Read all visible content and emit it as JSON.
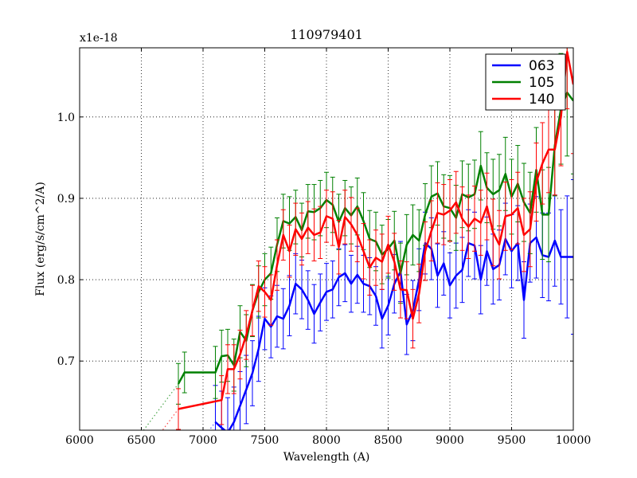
{
  "chart_data": {
    "type": "line",
    "title": "110979401",
    "xlabel": "Wavelength (A)",
    "ylabel": "Flux (erg/s/cm^2/A)",
    "y_multiplier": "x1e-18",
    "xlim": [
      6000,
      10000
    ],
    "ylim": [
      0.615,
      1.085
    ],
    "grid": true,
    "legend_position": "top-right",
    "x_ticks": [
      6000,
      6500,
      7000,
      7500,
      8000,
      8500,
      9000,
      9500,
      10000
    ],
    "x_tick_labels": [
      "6000",
      "6500",
      "7000",
      "7500",
      "8000",
      "8500",
      "9000",
      "9500",
      "10000"
    ],
    "y_ticks": [
      0.7,
      0.8,
      0.9,
      1.0
    ],
    "y_tick_labels": [
      "0.7",
      "0.8",
      "0.9",
      "1.0"
    ],
    "series": [
      {
        "name": "063",
        "color": "#0000ff",
        "x": [
          7100,
          7150,
          7200,
          7250,
          7300,
          7350,
          7400,
          7450,
          7500,
          7550,
          7600,
          7650,
          7700,
          7750,
          7800,
          7850,
          7900,
          7950,
          8000,
          8050,
          8100,
          8150,
          8200,
          8250,
          8300,
          8350,
          8400,
          8450,
          8500,
          8550,
          8600,
          8650,
          8700,
          8750,
          8800,
          8850,
          8900,
          8950,
          9000,
          9050,
          9100,
          9150,
          9200,
          9250,
          9300,
          9350,
          9400,
          9450,
          9500,
          9550,
          9600,
          9650,
          9700,
          9750,
          9800,
          9850,
          9900,
          9950,
          10000
        ],
        "y": [
          0.625,
          0.618,
          0.612,
          0.625,
          0.645,
          0.665,
          0.685,
          0.715,
          0.752,
          0.742,
          0.755,
          0.752,
          0.768,
          0.795,
          0.788,
          0.775,
          0.758,
          0.772,
          0.785,
          0.788,
          0.803,
          0.808,
          0.795,
          0.806,
          0.795,
          0.792,
          0.78,
          0.752,
          0.768,
          0.795,
          0.81,
          0.745,
          0.762,
          0.8,
          0.845,
          0.838,
          0.805,
          0.82,
          0.793,
          0.805,
          0.812,
          0.845,
          0.842,
          0.8,
          0.835,
          0.813,
          0.818,
          0.85,
          0.835,
          0.845,
          0.775,
          0.845,
          0.852,
          0.83,
          0.828,
          0.848,
          0.828,
          0.828,
          0.828
        ],
        "err": [
          0.045,
          0.045,
          0.043,
          0.043,
          0.042,
          0.042,
          0.04,
          0.04,
          0.038,
          0.038,
          0.038,
          0.037,
          0.037,
          0.037,
          0.036,
          0.036,
          0.036,
          0.035,
          0.035,
          0.035,
          0.035,
          0.035,
          0.035,
          0.035,
          0.035,
          0.035,
          0.036,
          0.036,
          0.036,
          0.036,
          0.037,
          0.037,
          0.037,
          0.038,
          0.038,
          0.038,
          0.039,
          0.039,
          0.04,
          0.04,
          0.04,
          0.041,
          0.041,
          0.042,
          0.042,
          0.043,
          0.043,
          0.044,
          0.045,
          0.046,
          0.047,
          0.048,
          0.05,
          0.052,
          0.054,
          0.056,
          0.058,
          0.075,
          0.095
        ]
      },
      {
        "name": "105",
        "color": "#008000",
        "x": [
          6800,
          6850,
          7100,
          7150,
          7200,
          7250,
          7300,
          7350,
          7400,
          7450,
          7500,
          7550,
          7600,
          7650,
          7700,
          7750,
          7800,
          7850,
          7900,
          7950,
          8000,
          8050,
          8100,
          8150,
          8200,
          8250,
          8300,
          8350,
          8400,
          8450,
          8500,
          8550,
          8600,
          8650,
          8700,
          8750,
          8800,
          8850,
          8900,
          8950,
          9000,
          9050,
          9100,
          9150,
          9200,
          9250,
          9300,
          9350,
          9400,
          9450,
          9500,
          9550,
          9600,
          9650,
          9700,
          9750,
          9800,
          9850,
          9900,
          9950,
          10000
        ],
        "y": [
          0.672,
          0.686,
          0.686,
          0.706,
          0.707,
          0.695,
          0.736,
          0.725,
          0.762,
          0.785,
          0.8,
          0.808,
          0.843,
          0.872,
          0.869,
          0.877,
          0.861,
          0.884,
          0.883,
          0.888,
          0.898,
          0.892,
          0.871,
          0.888,
          0.879,
          0.89,
          0.872,
          0.85,
          0.847,
          0.831,
          0.838,
          0.848,
          0.808,
          0.843,
          0.855,
          0.848,
          0.88,
          0.902,
          0.906,
          0.89,
          0.888,
          0.876,
          0.905,
          0.901,
          0.905,
          0.94,
          0.913,
          0.905,
          0.91,
          0.93,
          0.902,
          0.918,
          0.895,
          0.882,
          0.935,
          0.88,
          0.88,
          0.965,
          1.01,
          1.03,
          1.02
        ],
        "err": [
          0.025,
          0.025,
          0.032,
          0.032,
          0.032,
          0.032,
          0.032,
          0.032,
          0.032,
          0.032,
          0.032,
          0.032,
          0.033,
          0.033,
          0.033,
          0.033,
          0.033,
          0.033,
          0.034,
          0.034,
          0.034,
          0.034,
          0.034,
          0.034,
          0.035,
          0.035,
          0.035,
          0.035,
          0.036,
          0.036,
          0.036,
          0.036,
          0.037,
          0.037,
          0.037,
          0.038,
          0.038,
          0.038,
          0.039,
          0.039,
          0.04,
          0.04,
          0.041,
          0.041,
          0.042,
          0.042,
          0.043,
          0.043,
          0.044,
          0.045,
          0.046,
          0.047,
          0.048,
          0.05,
          0.052,
          0.055,
          0.058,
          0.062,
          0.068,
          0.078,
          0.09
        ]
      },
      {
        "name": "140",
        "color": "#ff0000",
        "x": [
          6800,
          7150,
          7200,
          7250,
          7300,
          7350,
          7400,
          7450,
          7500,
          7550,
          7600,
          7650,
          7700,
          7750,
          7800,
          7850,
          7900,
          7950,
          8000,
          8050,
          8100,
          8150,
          8200,
          8250,
          8300,
          8350,
          8400,
          8450,
          8500,
          8550,
          8600,
          8650,
          8700,
          8750,
          8800,
          8850,
          8900,
          8950,
          9000,
          9050,
          9100,
          9150,
          9200,
          9250,
          9300,
          9350,
          9400,
          9450,
          9500,
          9550,
          9600,
          9650,
          9700,
          9750,
          9800,
          9850,
          9900,
          9950,
          10000
        ],
        "y": [
          0.641,
          0.652,
          0.69,
          0.69,
          0.708,
          0.732,
          0.762,
          0.792,
          0.785,
          0.775,
          0.818,
          0.855,
          0.835,
          0.862,
          0.85,
          0.864,
          0.855,
          0.858,
          0.878,
          0.875,
          0.84,
          0.877,
          0.868,
          0.855,
          0.835,
          0.815,
          0.827,
          0.822,
          0.843,
          0.822,
          0.788,
          0.787,
          0.752,
          0.783,
          0.835,
          0.86,
          0.882,
          0.88,
          0.885,
          0.895,
          0.875,
          0.865,
          0.875,
          0.87,
          0.89,
          0.858,
          0.843,
          0.878,
          0.88,
          0.888,
          0.855,
          0.862,
          0.92,
          0.943,
          0.96,
          0.96,
          1.0,
          1.08,
          1.04
        ],
        "err": [
          0.025,
          0.03,
          0.03,
          0.03,
          0.03,
          0.03,
          0.031,
          0.031,
          0.031,
          0.031,
          0.031,
          0.031,
          0.032,
          0.032,
          0.032,
          0.032,
          0.032,
          0.032,
          0.032,
          0.033,
          0.033,
          0.033,
          0.033,
          0.033,
          0.034,
          0.034,
          0.034,
          0.034,
          0.035,
          0.035,
          0.035,
          0.035,
          0.036,
          0.036,
          0.036,
          0.037,
          0.037,
          0.037,
          0.038,
          0.038,
          0.039,
          0.039,
          0.04,
          0.04,
          0.041,
          0.041,
          0.042,
          0.042,
          0.043,
          0.044,
          0.045,
          0.046,
          0.048,
          0.05,
          0.053,
          0.056,
          0.06,
          0.07,
          0.085
        ]
      }
    ]
  }
}
